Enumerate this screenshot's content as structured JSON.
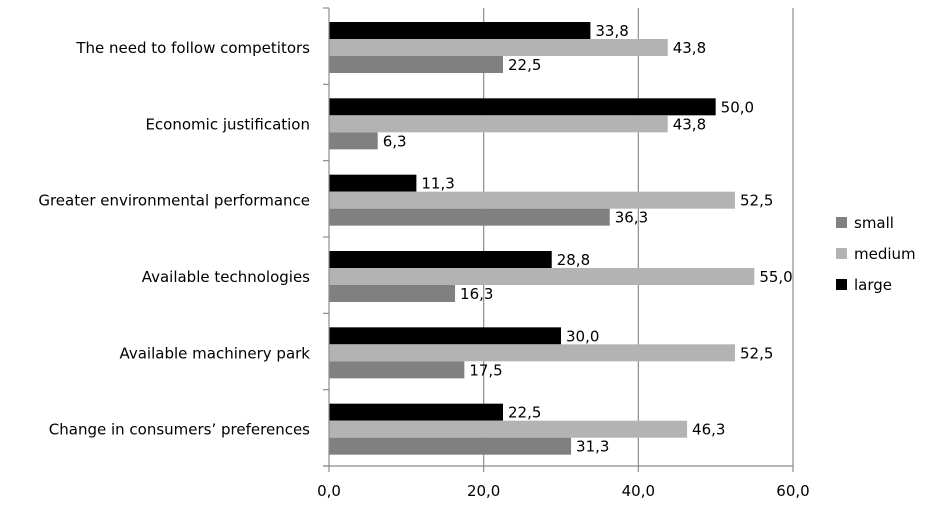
{
  "chart_data": {
    "type": "bar",
    "orientation": "horizontal",
    "categories": [
      "The need to follow competitors",
      "Economic justification",
      "Greater environmental performance",
      "Available technologies",
      "Available machinery park",
      "Change in consumers’ preferences"
    ],
    "series": [
      {
        "name": "small",
        "color": "#808080",
        "values": [
          22.5,
          6.3,
          36.3,
          16.3,
          17.5,
          31.3
        ],
        "labels": [
          "22,5",
          "6,3",
          "36,3",
          "16,3",
          "17,5",
          "31,3"
        ]
      },
      {
        "name": "medium",
        "color": "#b3b3b3",
        "values": [
          43.8,
          43.8,
          52.5,
          55.0,
          52.5,
          46.3
        ],
        "labels": [
          "43,8",
          "43,8",
          "52,5",
          "55,0",
          "52,5",
          "46,3"
        ]
      },
      {
        "name": "large",
        "color": "#000000",
        "values": [
          33.8,
          50.0,
          11.3,
          28.8,
          30.0,
          22.5
        ],
        "labels": [
          "33,8",
          "50,0",
          "11,3",
          "28,8",
          "30,0",
          "22,5"
        ]
      }
    ],
    "xlim": [
      0,
      60
    ],
    "ticks": [
      0,
      20,
      40,
      60
    ],
    "tick_labels": [
      "0,0",
      "20,0",
      "40,0",
      "60,0"
    ],
    "grid": true,
    "legend_position": "right",
    "legend_order": [
      "small",
      "medium",
      "large"
    ],
    "bar_order_within_group": [
      "large",
      "medium",
      "small"
    ]
  }
}
